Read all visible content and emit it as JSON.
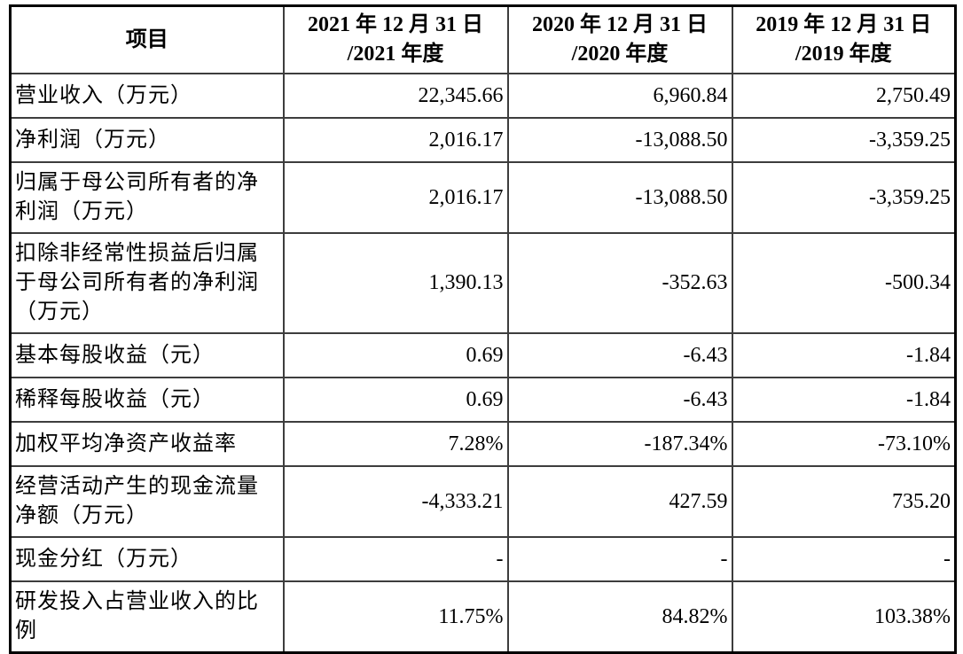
{
  "table": {
    "columns": [
      {
        "label": "项目"
      },
      {
        "line1": "2021 年 12 月 31 日",
        "line2": "/2021 年度"
      },
      {
        "line1": "2020 年 12 月 31 日",
        "line2": "/2020 年度"
      },
      {
        "line1": "2019 年 12 月 31 日",
        "line2": "/2019 年度"
      }
    ],
    "rows": [
      {
        "label": "营业收入（万元）",
        "values": [
          "22,345.66",
          "6,960.84",
          "2,750.49"
        ]
      },
      {
        "label": "净利润（万元）",
        "values": [
          "2,016.17",
          "-13,088.50",
          "-3,359.25"
        ]
      },
      {
        "label": "归属于母公司所有者的净利润（万元）",
        "values": [
          "2,016.17",
          "-13,088.50",
          "-3,359.25"
        ]
      },
      {
        "label": "扣除非经常性损益后归属于母公司所有者的净利润（万元）",
        "values": [
          "1,390.13",
          "-352.63",
          "-500.34"
        ]
      },
      {
        "label": "基本每股收益（元）",
        "values": [
          "0.69",
          "-6.43",
          "-1.84"
        ]
      },
      {
        "label": "稀释每股收益（元）",
        "values": [
          "0.69",
          "-6.43",
          "-1.84"
        ]
      },
      {
        "label": "加权平均净资产收益率",
        "values": [
          "7.28%",
          "-187.34%",
          "-73.10%"
        ]
      },
      {
        "label": "经营活动产生的现金流量净额（万元）",
        "values": [
          "-4,333.21",
          "427.59",
          "735.20"
        ]
      },
      {
        "label": "现金分红（万元）",
        "values": [
          "-",
          "-",
          "-"
        ]
      },
      {
        "label": "研发投入占营业收入的比例",
        "values": [
          "11.75%",
          "84.82%",
          "103.38%"
        ]
      }
    ],
    "text_color": "#000000",
    "outer_border_color": "#000000",
    "inner_border_color": "#3d3d3d",
    "background_color": "#ffffff"
  }
}
